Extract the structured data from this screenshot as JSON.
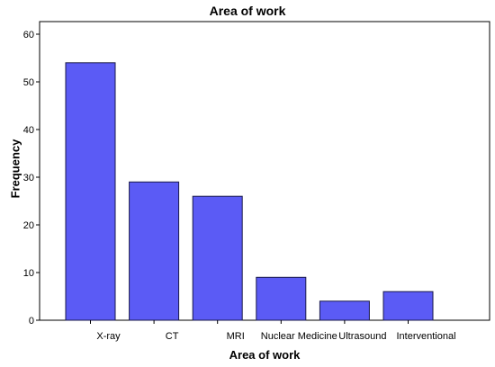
{
  "chart_data": {
    "type": "bar",
    "title": "Area of work",
    "xlabel": "Area of work",
    "ylabel": "Frequency",
    "categories": [
      "X-ray",
      "CT",
      "MRI",
      "Nuclear Medicine",
      "Ultrasound",
      "Interventional"
    ],
    "values": [
      54,
      29,
      26,
      9,
      4,
      6
    ],
    "ylim": [
      0,
      60
    ],
    "yticks": [
      0,
      10,
      20,
      30,
      40,
      50,
      60
    ],
    "grid": false,
    "colors": {
      "bar_fill": "#5b5bf5",
      "bar_stroke": "#1a1a4a",
      "axis": "#000000"
    }
  }
}
